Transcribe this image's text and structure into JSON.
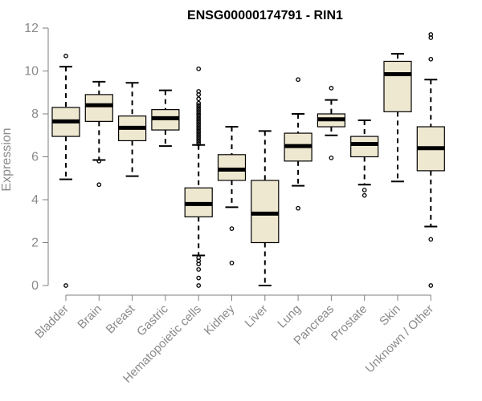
{
  "chart_data": {
    "type": "boxplot",
    "title": "ENSG00000174791 - RIN1",
    "xlabel": "",
    "ylabel": "Expression",
    "ylim": [
      0,
      12
    ],
    "yticks": [
      0,
      2,
      4,
      6,
      8,
      10,
      12
    ],
    "categories": [
      "Bladder",
      "Brain",
      "Breast",
      "Gastric",
      "Hematopoietic cells",
      "Kidney",
      "Liver",
      "Lung",
      "Pancreas",
      "Prostate",
      "Skin",
      "Unknown / Other"
    ],
    "boxes": [
      {
        "category": "Bladder",
        "whisker_low": 4.95,
        "q1": 6.95,
        "median": 7.65,
        "q3": 8.3,
        "whisker_high": 10.2,
        "outliers": [
          0.0,
          10.7
        ]
      },
      {
        "category": "Brain",
        "whisker_low": 5.85,
        "q1": 7.65,
        "median": 8.4,
        "q3": 8.9,
        "whisker_high": 9.5,
        "outliers": [
          4.7,
          5.8
        ]
      },
      {
        "category": "Breast",
        "whisker_low": 5.1,
        "q1": 6.75,
        "median": 7.35,
        "q3": 7.9,
        "whisker_high": 9.45,
        "outliers": []
      },
      {
        "category": "Gastric",
        "whisker_low": 6.5,
        "q1": 7.25,
        "median": 7.8,
        "q3": 8.2,
        "whisker_high": 9.1,
        "outliers": []
      },
      {
        "category": "Hematopoietic cells",
        "whisker_low": 1.4,
        "q1": 3.2,
        "median": 3.8,
        "q3": 4.55,
        "whisker_high": 6.55,
        "outliers": [
          0.0,
          0.35,
          0.75,
          1.0,
          1.15,
          1.3,
          6.6,
          6.7,
          6.8,
          6.9,
          7.0,
          7.1,
          7.2,
          7.3,
          7.4,
          7.5,
          7.6,
          7.7,
          7.8,
          7.9,
          8.0,
          8.1,
          8.2,
          8.3,
          8.4,
          8.5,
          8.7,
          8.9,
          9.05,
          10.1
        ]
      },
      {
        "category": "Kidney",
        "whisker_low": 3.65,
        "q1": 4.9,
        "median": 5.4,
        "q3": 6.1,
        "whisker_high": 7.4,
        "outliers": [
          1.05,
          2.65
        ]
      },
      {
        "category": "Liver",
        "whisker_low": 0.0,
        "q1": 2.0,
        "median": 3.35,
        "q3": 4.9,
        "whisker_high": 7.2,
        "outliers": []
      },
      {
        "category": "Lung",
        "whisker_low": 4.65,
        "q1": 5.8,
        "median": 6.5,
        "q3": 7.1,
        "whisker_high": 8.0,
        "outliers": [
          3.6,
          9.6
        ]
      },
      {
        "category": "Pancreas",
        "whisker_low": 7.0,
        "q1": 7.4,
        "median": 7.75,
        "q3": 8.0,
        "whisker_high": 8.65,
        "outliers": [
          5.95,
          9.2
        ]
      },
      {
        "category": "Prostate",
        "whisker_low": 4.7,
        "q1": 6.0,
        "median": 6.6,
        "q3": 6.95,
        "whisker_high": 7.7,
        "outliers": [
          4.2,
          4.45
        ]
      },
      {
        "category": "Skin",
        "whisker_low": 4.85,
        "q1": 8.1,
        "median": 9.85,
        "q3": 10.45,
        "whisker_high": 10.8,
        "outliers": []
      },
      {
        "category": "Unknown / Other",
        "whisker_low": 2.75,
        "q1": 5.35,
        "median": 6.4,
        "q3": 7.4,
        "whisker_high": 9.6,
        "outliers": [
          0.0,
          2.15,
          10.55,
          11.55,
          11.7
        ]
      }
    ],
    "colors": {
      "box_fill": "#efe8d1",
      "box_stroke": "#000000",
      "median": "#000000",
      "axis": "#7f7f7f",
      "text": "#8a8a8a"
    },
    "grid": false,
    "legend": "none"
  }
}
